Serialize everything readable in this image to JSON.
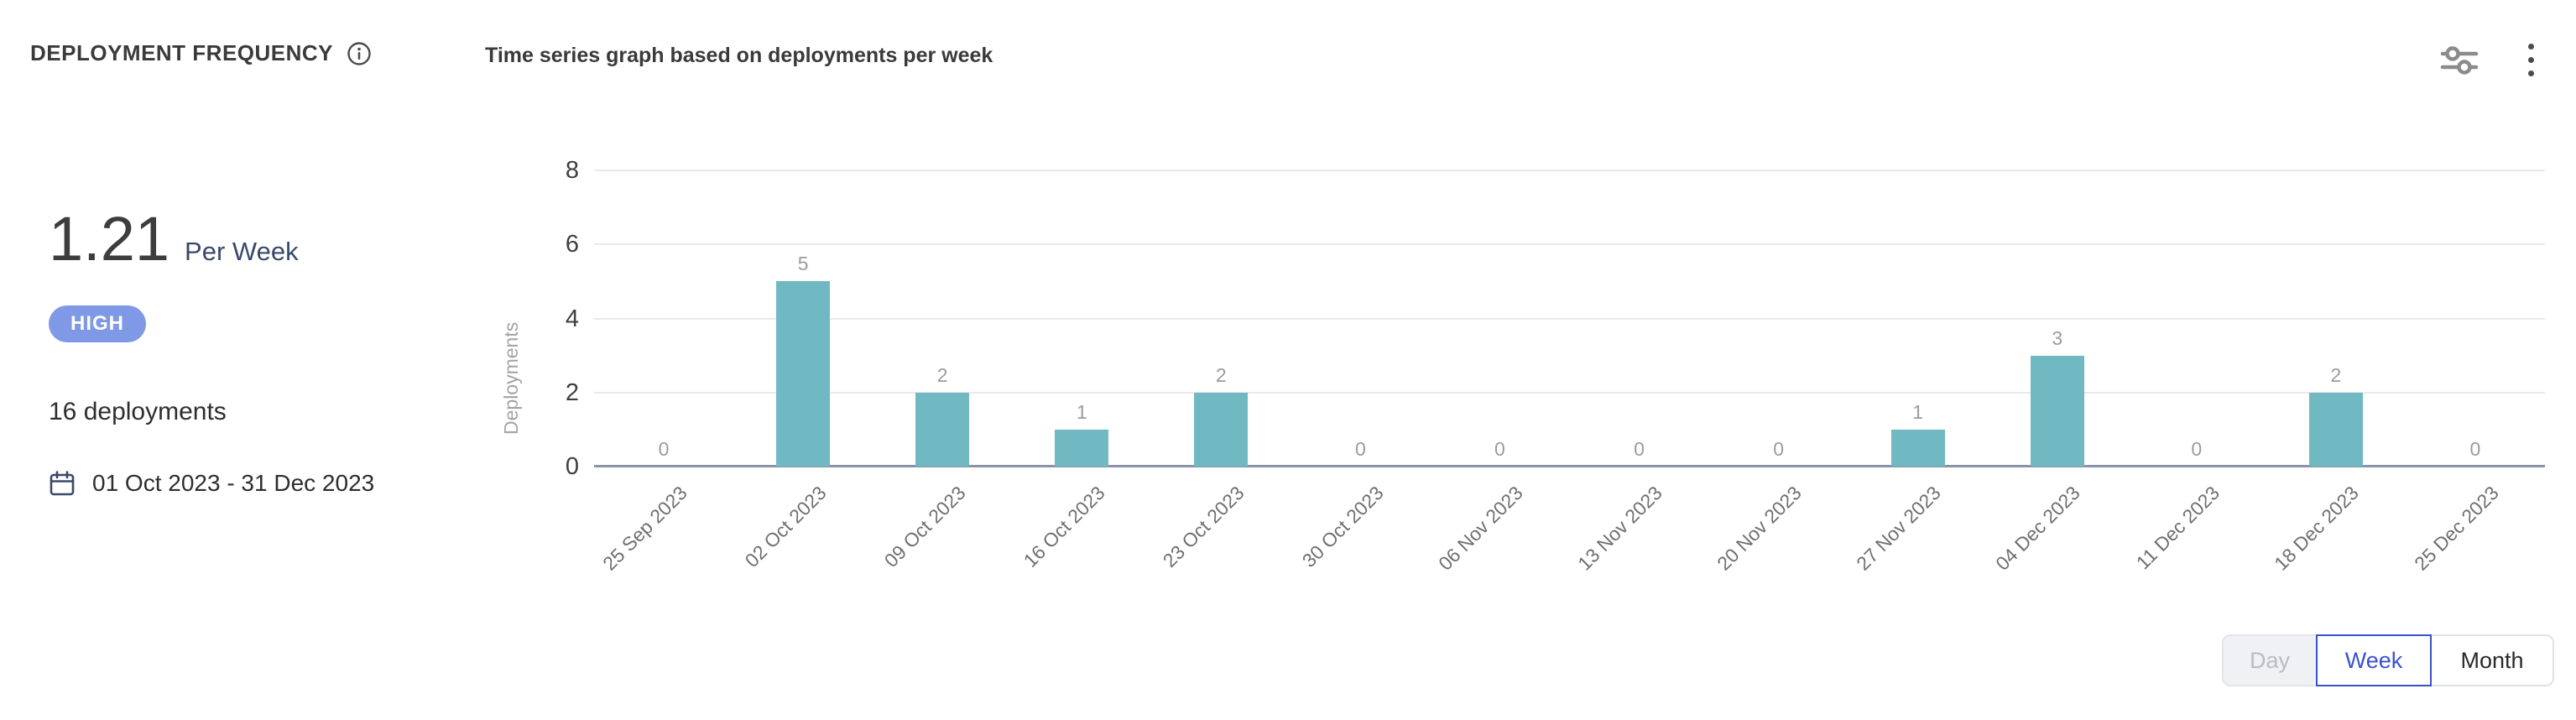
{
  "header": {
    "title": "DEPLOYMENT FREQUENCY",
    "subtitle": "Time series graph based on deployments per week",
    "icons": [
      "info-icon",
      "sliders-icon",
      "kebab-menu-icon"
    ]
  },
  "stats": {
    "value": "1.21",
    "unit": "Per Week",
    "badge": "HIGH",
    "deployments": "16 deployments",
    "date_range": "01 Oct 2023 - 31 Dec 2023",
    "date_icon": "calendar-icon"
  },
  "chart_data": {
    "type": "bar",
    "title": "Time series graph based on deployments per week",
    "xlabel": "",
    "ylabel": "Deployments",
    "categories": [
      "25 Sep 2023",
      "02 Oct 2023",
      "09 Oct 2023",
      "16 Oct 2023",
      "23 Oct 2023",
      "30 Oct 2023",
      "06 Nov 2023",
      "13 Nov 2023",
      "20 Nov 2023",
      "27 Nov 2023",
      "04 Dec 2023",
      "11 Dec 2023",
      "18 Dec 2023",
      "25 Dec 2023"
    ],
    "values": [
      0,
      5,
      2,
      1,
      2,
      0,
      0,
      0,
      0,
      1,
      3,
      0,
      2,
      0
    ],
    "yticks": [
      0,
      2,
      4,
      6,
      8
    ],
    "ylim": [
      0,
      8
    ],
    "grid": true,
    "legend": "none",
    "bar_color": "#70b9c3",
    "value_label_color": "#9b9b9b"
  },
  "toolbar": {
    "granularity": [
      {
        "label": "Day",
        "state": "disabled"
      },
      {
        "label": "Week",
        "state": "selected"
      },
      {
        "label": "Month",
        "state": "default"
      }
    ]
  },
  "colors": {
    "accent_blue": "#3b51cf",
    "badge_bg": "#8099e6",
    "bar_teal": "#70b9c3",
    "axis_baseline": "#8b93a6",
    "navy_text": "#39496b"
  }
}
